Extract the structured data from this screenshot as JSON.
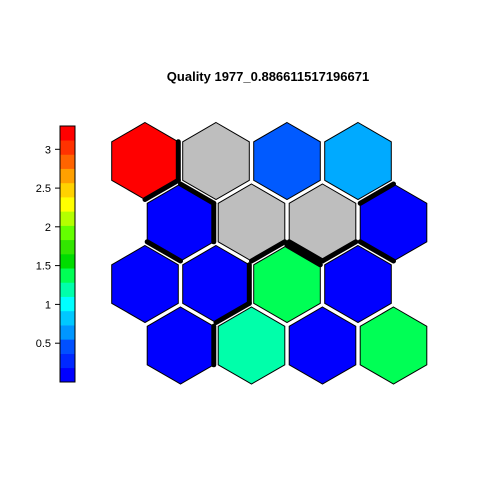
{
  "chart_data": {
    "type": "heatmap",
    "subtype": "hexagonal-som-quality-map",
    "title": "Quality 1977_0.886611517196671",
    "grid": {
      "rows": 4,
      "cols": 4,
      "layout": "odd rows shifted right"
    },
    "value_range": [
      0,
      3.3
    ],
    "cells": [
      {
        "row": 0,
        "col": 0,
        "status": "value",
        "color": "#ff0000",
        "value": 3.2
      },
      {
        "row": 0,
        "col": 1,
        "status": "empty",
        "color": "#bebebe",
        "value": null
      },
      {
        "row": 0,
        "col": 2,
        "status": "value",
        "color": "#005aff",
        "value": 0.45
      },
      {
        "row": 0,
        "col": 3,
        "status": "value",
        "color": "#00aaff",
        "value": 0.7
      },
      {
        "row": 1,
        "col": 0,
        "status": "value",
        "color": "#0000ff",
        "value": 0.1
      },
      {
        "row": 1,
        "col": 1,
        "status": "empty",
        "color": "#bebebe",
        "value": null
      },
      {
        "row": 1,
        "col": 2,
        "status": "empty",
        "color": "#bebebe",
        "value": null
      },
      {
        "row": 1,
        "col": 3,
        "status": "value",
        "color": "#0000ff",
        "value": 0.1
      },
      {
        "row": 2,
        "col": 0,
        "status": "value",
        "color": "#0000ff",
        "value": 0.1
      },
      {
        "row": 2,
        "col": 1,
        "status": "value",
        "color": "#0000ff",
        "value": 0.1
      },
      {
        "row": 2,
        "col": 2,
        "status": "value",
        "color": "#00ff55",
        "value": 1.4
      },
      {
        "row": 2,
        "col": 3,
        "status": "value",
        "color": "#0000ff",
        "value": 0.1
      },
      {
        "row": 3,
        "col": 0,
        "status": "value",
        "color": "#0000ff",
        "value": 0.1
      },
      {
        "row": 3,
        "col": 1,
        "status": "value",
        "color": "#00ffaa",
        "value": 1.15
      },
      {
        "row": 3,
        "col": 2,
        "status": "value",
        "color": "#0000ff",
        "value": 0.1
      },
      {
        "row": 3,
        "col": 3,
        "status": "value",
        "color": "#00ff55",
        "value": 1.4
      }
    ],
    "cluster_boundaries": [
      {
        "row": 0,
        "col": 0,
        "edges": [
          "E",
          "SE"
        ]
      },
      {
        "row": 1,
        "col": 0,
        "edges": [
          "NE",
          "E",
          "SW"
        ]
      },
      {
        "row": 1,
        "col": 1,
        "edges": [
          "SE"
        ]
      },
      {
        "row": 1,
        "col": 2,
        "edges": [
          "SW",
          "SE"
        ]
      },
      {
        "row": 1,
        "col": 3,
        "edges": [
          "NW",
          "SW"
        ]
      },
      {
        "row": 2,
        "col": 1,
        "edges": [
          "E",
          "SE"
        ]
      },
      {
        "row": 2,
        "col": 2,
        "edges": [
          "NE"
        ]
      },
      {
        "row": 3,
        "col": 0,
        "edges": [
          "E"
        ]
      }
    ],
    "colorbar": {
      "colors": [
        "#0000ff",
        "#0028ff",
        "#0050ff",
        "#0096ff",
        "#00c8ff",
        "#00ffff",
        "#00ffaa",
        "#00ff55",
        "#00dc00",
        "#32e600",
        "#64ff00",
        "#b4ff00",
        "#ffff00",
        "#ffd200",
        "#ffa000",
        "#ff6400",
        "#ff3200",
        "#ff0000"
      ],
      "ticks": [
        0.5,
        1,
        1.5,
        2,
        2.5,
        3
      ],
      "tick_labels": [
        "0.5",
        "1",
        "1.5",
        "2",
        "2.5",
        "3"
      ]
    }
  }
}
